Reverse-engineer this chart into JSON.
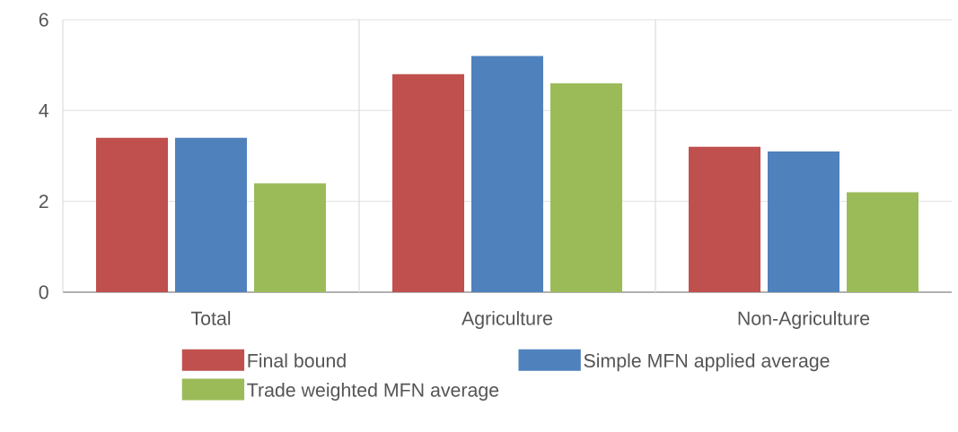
{
  "chart_data": {
    "type": "bar",
    "categories": [
      "Total",
      "Agriculture",
      "Non-Agriculture"
    ],
    "series": [
      {
        "name": "Final bound",
        "color": "#c0504d",
        "values": [
          3.4,
          4.8,
          3.2
        ]
      },
      {
        "name": "Simple MFN applied average",
        "color": "#4f81bd",
        "values": [
          3.4,
          5.2,
          3.1
        ]
      },
      {
        "name": "Trade weighted MFN average",
        "color": "#9bbb59",
        "values": [
          2.4,
          4.6,
          2.2
        ]
      }
    ],
    "ylim": [
      0,
      6
    ],
    "yticks": [
      0,
      2,
      4,
      6
    ],
    "grid": "y",
    "legend": "bottom"
  }
}
